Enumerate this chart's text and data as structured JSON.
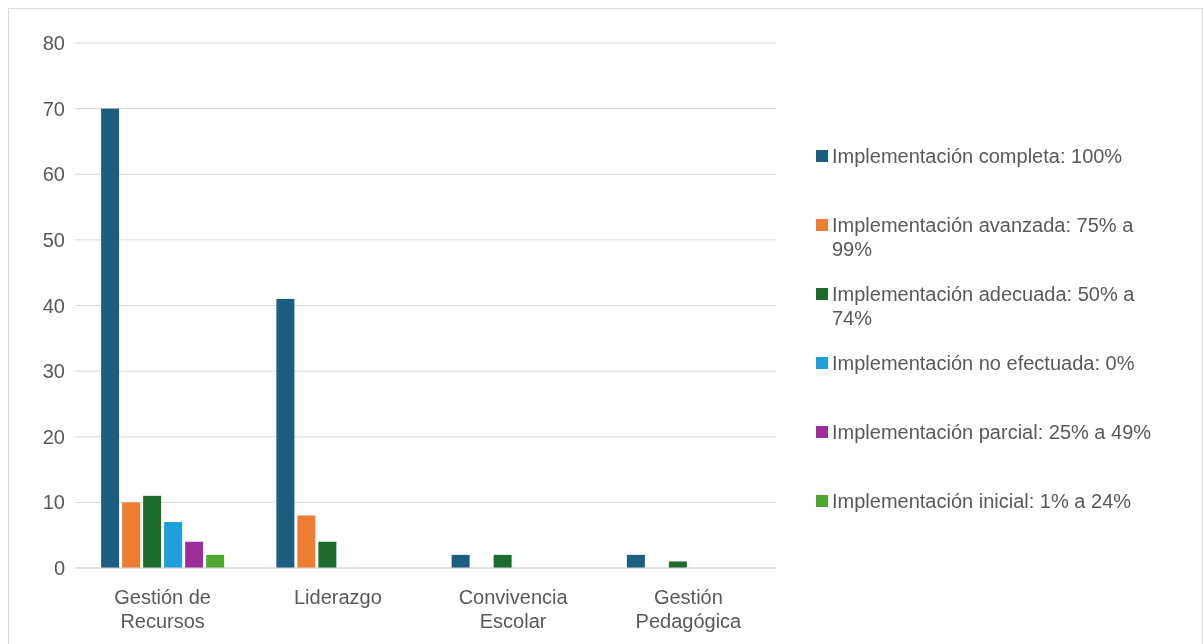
{
  "chart_data": {
    "type": "bar",
    "categories": [
      "Gestión de Recursos",
      "Liderazgo",
      "Convivencia Escolar",
      "Gestión Pedagógica"
    ],
    "series": [
      {
        "name": "Implementación completa: 100%",
        "color": "#1b5e80",
        "values": [
          70,
          41,
          2,
          2
        ]
      },
      {
        "name": "Implementación avanzada: 75% a 99%",
        "color": "#ed7d31",
        "values": [
          10,
          8,
          0,
          0
        ]
      },
      {
        "name": "Implementación adecuada: 50% a 74%",
        "color": "#1e6b2e",
        "values": [
          11,
          4,
          2,
          1
        ]
      },
      {
        "name": "Implementación no efectuada: 0%",
        "color": "#1fa0d8",
        "values": [
          7,
          0,
          0,
          0
        ]
      },
      {
        "name": "Implementación parcial: 25% a 49%",
        "color": "#9c2f97",
        "values": [
          4,
          0,
          0,
          0
        ]
      },
      {
        "name": "Implementación inicial: 1% a 24%",
        "color": "#4ea72e",
        "values": [
          2,
          0,
          0,
          0
        ]
      }
    ],
    "ylim": [
      0,
      80
    ],
    "yticks": [
      0,
      10,
      20,
      30,
      40,
      50,
      60,
      70,
      80
    ],
    "grid": "y",
    "legend": "right"
  }
}
